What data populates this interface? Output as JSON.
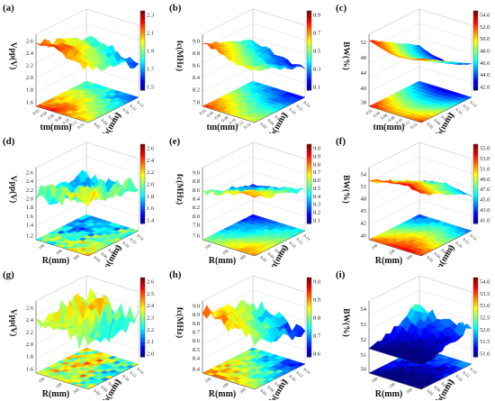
{
  "panels": [
    {
      "label": "(a)",
      "zlabel": "Vpp(V)",
      "xlabel": "tm(mm)",
      "ylabel": "tb(mm)",
      "z_ticks": [
        "2.6",
        "2.4",
        "2.2",
        "2.0",
        "1.8"
      ],
      "floor_ticks": [
        "1.6"
      ],
      "x_ticks": [
        "0.02",
        "0.04",
        "0.06",
        "0.08",
        "0.10",
        "0.12",
        "0.14"
      ],
      "y_ticks": [
        "0.02",
        "0.04",
        "0.06",
        "0.08",
        "0.10",
        "0.12",
        "0.14"
      ],
      "cbar": [
        "2.3",
        "2.1",
        "1.9",
        "1.7",
        "1.5"
      ],
      "seed": 1,
      "base": 0.62,
      "amp": 0.28,
      "slope": -0.55,
      "noise": 0.06
    },
    {
      "label": "(b)",
      "zlabel": "fc(MHz)",
      "xlabel": "tm(mm)",
      "ylabel": "tb(mm)",
      "z_ticks": [
        "9.0",
        "8.8",
        "8.6",
        "8.4",
        "8.2"
      ],
      "floor_ticks": [
        "7.8"
      ],
      "x_ticks": [
        "0.02",
        "0.04",
        "0.06",
        "0.08",
        "0.10",
        "0.12",
        "0.14"
      ],
      "y_ticks": [
        "0.02",
        "0.04",
        "0.06",
        "0.08",
        "0.10",
        "0.12",
        "0.14"
      ],
      "cbar": [
        "8.9",
        "8.7",
        "8.5",
        "8.3",
        "8.1"
      ],
      "seed": 2,
      "base": 0.6,
      "amp": 0.3,
      "slope": -0.6,
      "noise": 0.03
    },
    {
      "label": "(c)",
      "zlabel": "BW(%)",
      "xlabel": "tm(mm)",
      "ylabel": "tb(mm)",
      "z_ticks": [
        "52",
        "48",
        "44",
        "40"
      ],
      "floor_ticks": [
        "38"
      ],
      "x_ticks": [
        "0.02",
        "0.04",
        "0.06",
        "0.08",
        "0.10",
        "0.12",
        "0.14"
      ],
      "y_ticks": [
        "0.02",
        "0.04",
        "0.06",
        "0.08",
        "0.10",
        "0.12",
        "0.14"
      ],
      "cbar": [
        "54.0",
        "52.0",
        "50.0",
        "48.0",
        "46.0",
        "44.0",
        "42.0"
      ],
      "seed": 3,
      "base": 0.65,
      "amp": 0.35,
      "slope": -0.8,
      "noise": 0.01
    },
    {
      "label": "(d)",
      "zlabel": "Vpp(V)",
      "xlabel": "R(mm)",
      "ylabel": "tm(mm)",
      "z_ticks": [
        "2.6",
        "2.4",
        "2.2",
        "2.0",
        "1.8",
        "1.6",
        "1.4"
      ],
      "floor_ticks": [
        "1.2"
      ],
      "x_ticks": [
        "100",
        "200",
        "300"
      ],
      "y_ticks": [
        "0.02",
        "0.04",
        "0.06",
        "0.08",
        "0.10",
        "0.12",
        "0.14"
      ],
      "cbar": [
        "2.6",
        "2.4",
        "2.2",
        "2.0",
        "1.8",
        "1.6",
        "1.4"
      ],
      "seed": 4,
      "base": 0.6,
      "amp": 0.25,
      "slope": -0.3,
      "noise": 0.15
    },
    {
      "label": "(e)",
      "zlabel": "fc(MHz)",
      "xlabel": "R(mm)",
      "ylabel": "tm(mm)",
      "z_ticks": [
        "9.0",
        "8.8",
        "8.6",
        "8.4",
        "8.2",
        "8.0",
        "7.8"
      ],
      "floor_ticks": [
        "7.6"
      ],
      "x_ticks": [
        "100",
        "200",
        "300"
      ],
      "y_ticks": [
        "0.02",
        "0.04",
        "0.06",
        "0.08",
        "0.10",
        "0.12",
        "0.14"
      ],
      "cbar": [
        "9.0",
        "8.9",
        "8.8",
        "8.7",
        "8.6",
        "8.5",
        "8.4",
        "8.3",
        "8.2",
        "8.1"
      ],
      "seed": 5,
      "base": 0.55,
      "amp": 0.3,
      "slope": -0.5,
      "noise": 0.04
    },
    {
      "label": "(f)",
      "zlabel": "BW(%)",
      "xlabel": "R(mm)",
      "ylabel": "tm(mm)",
      "z_ticks": [
        "54",
        "51",
        "48",
        "45",
        "42"
      ],
      "floor_ticks": [
        "40"
      ],
      "x_ticks": [
        "100",
        "200",
        "300"
      ],
      "y_ticks": [
        "0.02",
        "0.04",
        "0.06",
        "0.08",
        "0.10",
        "0.12",
        "0.14"
      ],
      "cbar": [
        "55.0",
        "53.0",
        "51.0",
        "49.0",
        "47.0",
        "45.0",
        "43.0",
        "41.0"
      ],
      "seed": 6,
      "base": 0.6,
      "amp": 0.3,
      "slope": -0.7,
      "noise": 0.03
    },
    {
      "label": "(g)",
      "zlabel": "Vpp(V)",
      "xlabel": "R(mm)",
      "ylabel": "tb(mm)",
      "z_ticks": [
        "2.6",
        "2.4",
        "2.2",
        "2.0",
        "1.8"
      ],
      "floor_ticks": [
        "1.6"
      ],
      "x_ticks": [
        "100",
        "200",
        "300"
      ],
      "y_ticks": [
        "0.02",
        "0.04",
        "0.06",
        "0.08",
        "0.10",
        "0.12",
        "0.14"
      ],
      "cbar": [
        "2.6",
        "2.5",
        "2.4",
        "2.3",
        "2.2",
        "2.1",
        "2.0"
      ],
      "seed": 7,
      "base": 0.62,
      "amp": 0.25,
      "slope": -0.1,
      "noise": 0.18
    },
    {
      "label": "(h)",
      "zlabel": "fc(MHz)",
      "xlabel": "R(mm)",
      "ylabel": "tb(mm)",
      "z_ticks": [
        "9.0",
        "8.9",
        "8.8",
        "8.7",
        "8.6",
        "8.5",
        "8.4"
      ],
      "floor_ticks": [
        "8.4"
      ],
      "x_ticks": [
        "100",
        "200",
        "300"
      ],
      "y_ticks": [
        "0.02",
        "0.04",
        "0.06",
        "0.08",
        "0.10",
        "0.12",
        "0.14"
      ],
      "cbar": [
        "9.0",
        "8.9",
        "8.8",
        "8.7",
        "8.6"
      ],
      "seed": 8,
      "base": 0.6,
      "amp": 0.3,
      "slope": -0.45,
      "noise": 0.12
    },
    {
      "label": "(i)",
      "zlabel": "BW(%)",
      "xlabel": "R(mm)",
      "ylabel": "tb(mm)",
      "z_ticks": [
        "54",
        "53",
        "52",
        "51"
      ],
      "floor_ticks": [
        "50"
      ],
      "x_ticks": [
        "100",
        "200",
        "300"
      ],
      "y_ticks": [
        "0.02",
        "0.04",
        "0.06",
        "0.08",
        "0.10",
        "0.12",
        "0.14"
      ],
      "cbar": [
        "54.0",
        "53.5",
        "53.0",
        "52.5",
        "52.0",
        "51.5",
        "51.0"
      ],
      "seed": 9,
      "base": 0.35,
      "amp": 0.3,
      "slope": 0.6,
      "noise": 0.08
    }
  ],
  "chart_data": [
    {
      "type": "surface",
      "panel": "(a)",
      "zlabel": "Vpp(V)",
      "xlabel": "tm(mm)",
      "ylabel": "tb(mm)",
      "zlim": [
        1.6,
        2.7
      ],
      "colorbar_range": [
        1.5,
        2.3
      ]
    },
    {
      "type": "surface",
      "panel": "(b)",
      "zlabel": "fc(MHz)",
      "xlabel": "tm(mm)",
      "ylabel": "tb(mm)",
      "zlim": [
        7.8,
        9.0
      ],
      "colorbar_range": [
        8.1,
        8.9
      ]
    },
    {
      "type": "surface",
      "panel": "(c)",
      "zlabel": "BW(%)",
      "xlabel": "tm(mm)",
      "ylabel": "tb(mm)",
      "zlim": [
        38,
        54
      ],
      "colorbar_range": [
        42,
        54
      ]
    },
    {
      "type": "surface",
      "panel": "(d)",
      "zlabel": "Vpp(V)",
      "xlabel": "R(mm)",
      "ylabel": "tm(mm)",
      "zlim": [
        1.2,
        2.7
      ],
      "colorbar_range": [
        1.4,
        2.6
      ]
    },
    {
      "type": "surface",
      "panel": "(e)",
      "zlabel": "fc(MHz)",
      "xlabel": "R(mm)",
      "ylabel": "tm(mm)",
      "zlim": [
        7.6,
        9.0
      ],
      "colorbar_range": [
        8.1,
        9.0
      ]
    },
    {
      "type": "surface",
      "panel": "(f)",
      "zlabel": "BW(%)",
      "xlabel": "R(mm)",
      "ylabel": "tm(mm)",
      "zlim": [
        40,
        55
      ],
      "colorbar_range": [
        41,
        55
      ]
    },
    {
      "type": "surface",
      "panel": "(g)",
      "zlabel": "Vpp(V)",
      "xlabel": "R(mm)",
      "ylabel": "tb(mm)",
      "zlim": [
        1.6,
        2.7
      ],
      "colorbar_range": [
        2.0,
        2.6
      ]
    },
    {
      "type": "surface",
      "panel": "(h)",
      "zlabel": "fc(MHz)",
      "xlabel": "R(mm)",
      "ylabel": "tb(mm)",
      "zlim": [
        8.4,
        9.1
      ],
      "colorbar_range": [
        8.6,
        9.0
      ]
    },
    {
      "type": "surface",
      "panel": "(i)",
      "zlabel": "BW(%)",
      "xlabel": "R(mm)",
      "ylabel": "tb(mm)",
      "zlim": [
        50,
        54.5
      ],
      "colorbar_range": [
        51,
        54
      ]
    }
  ]
}
